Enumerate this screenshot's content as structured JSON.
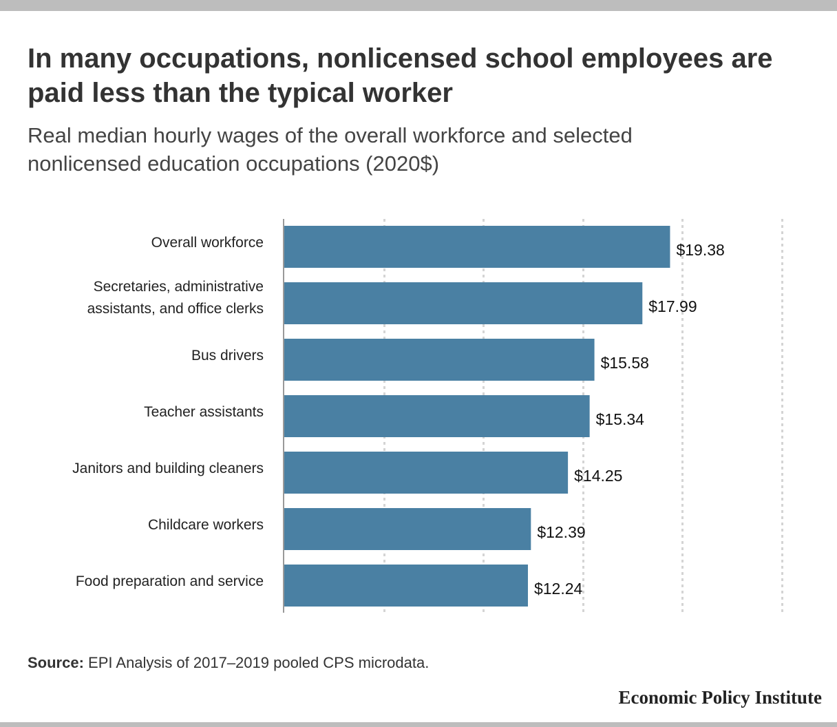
{
  "header": {
    "title": "In many occupations, nonlicensed school employees are paid less than the typical worker",
    "subtitle": "Real median hourly wages of the overall workforce and selected nonlicensed education occupations (2020$)"
  },
  "chart_data": {
    "type": "bar",
    "orientation": "horizontal",
    "categories": [
      "Overall workforce",
      "Secretaries, administrative assistants, and office clerks",
      "Bus drivers",
      "Teacher assistants",
      "Janitors and building cleaners",
      "Childcare workers",
      "Food preparation and service"
    ],
    "category_lines": [
      [
        "Overall workforce"
      ],
      [
        "Secretaries, administrative",
        "assistants, and office clerks"
      ],
      [
        "Bus drivers"
      ],
      [
        "Teacher assistants"
      ],
      [
        "Janitors and building cleaners"
      ],
      [
        "Childcare workers"
      ],
      [
        "Food preparation and service"
      ]
    ],
    "values": [
      19.38,
      17.99,
      15.58,
      15.34,
      14.25,
      12.39,
      12.24
    ],
    "value_labels": [
      "$19.38",
      "$17.99",
      "$15.58",
      "$15.34",
      "$14.25",
      "$12.39",
      "$12.24"
    ],
    "xlim": [
      0,
      25
    ],
    "gridlines": [
      5,
      10,
      15,
      20,
      25
    ],
    "grid": true,
    "bar_color": "#4a80a3",
    "xlabel": "",
    "ylabel": ""
  },
  "footer": {
    "source_label": "Source:",
    "source_text": " EPI Analysis of 2017–2019 pooled CPS microdata.",
    "brand": "Economic Policy Institute"
  },
  "colors": {
    "bar": "#4a80a3",
    "frame": "#bdbdbd",
    "grid": "#d4d4d4",
    "axis": "#999999"
  }
}
